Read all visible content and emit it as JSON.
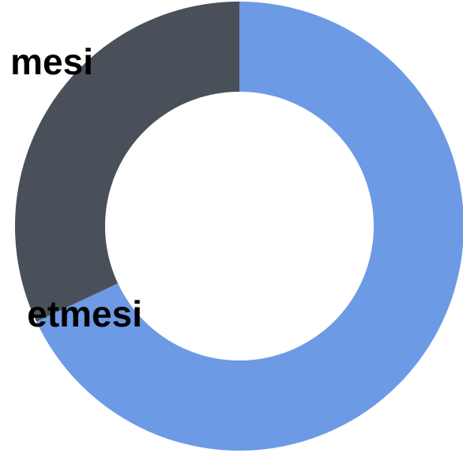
{
  "chart_data": {
    "type": "pie",
    "donut": true,
    "categories": [
      "…mesi",
      "…etmesi"
    ],
    "values": [
      68,
      32
    ],
    "colors": [
      "#6d9ae4",
      "#4a5059"
    ],
    "labels": [
      "mesi",
      "etmesi"
    ],
    "legend": "none"
  }
}
